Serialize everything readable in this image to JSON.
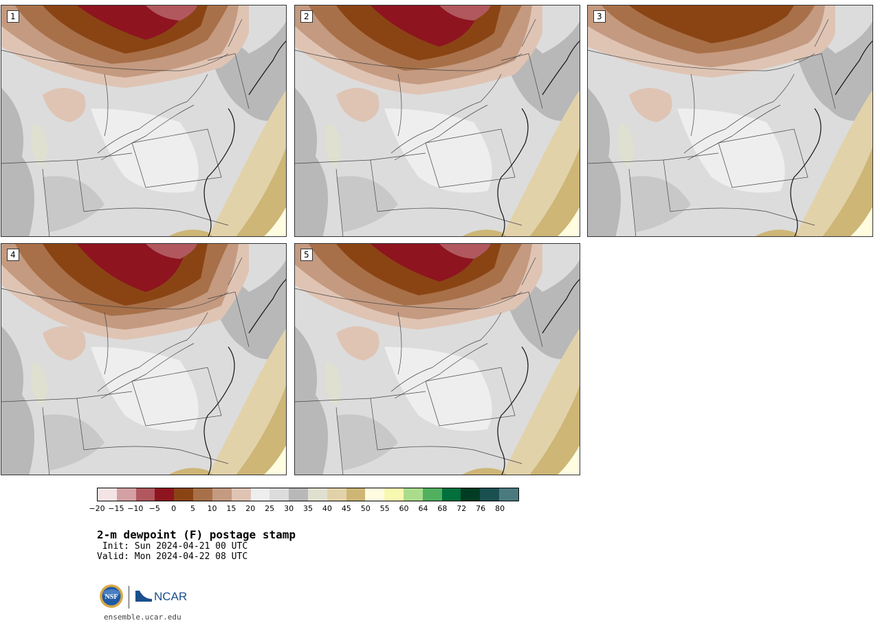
{
  "panels": [
    {
      "label": "1",
      "variant": 1
    },
    {
      "label": "2",
      "variant": 2
    },
    {
      "label": "3",
      "variant": 3
    },
    {
      "label": "4",
      "variant": 4
    },
    {
      "label": "5",
      "variant": 5
    }
  ],
  "colorbar": {
    "colors": [
      "#f4e4e4",
      "#d3a0a4",
      "#b0585e",
      "#8e1420",
      "#8a4414",
      "#a87048",
      "#c49a80",
      "#dfc4b4",
      "#eeeeee",
      "#dcdcdc",
      "#b8b8b8",
      "#e0e0d0",
      "#e2d2aa",
      "#cdb676",
      "#fffce0",
      "#f8f8b0",
      "#aadc8c",
      "#50b060",
      "#00703c",
      "#003c24",
      "#1a5050",
      "#4a7a7e"
    ],
    "tick_labels": [
      "−20",
      "−15",
      "−10",
      "−5",
      "0",
      "5",
      "10",
      "15",
      "20",
      "25",
      "30",
      "35",
      "40",
      "45",
      "50",
      "55",
      "60",
      "64",
      "68",
      "72",
      "76",
      "80"
    ]
  },
  "title": "2-m dewpoint (F) postage stamp",
  "init": " Init: Sun 2024-04-21 00 UTC",
  "valid": "Valid: Mon 2024-04-22 08 UTC",
  "logos": {
    "nsf": "NSF",
    "ncar": "NCAR"
  },
  "site": "ensemble.ucar.edu"
}
